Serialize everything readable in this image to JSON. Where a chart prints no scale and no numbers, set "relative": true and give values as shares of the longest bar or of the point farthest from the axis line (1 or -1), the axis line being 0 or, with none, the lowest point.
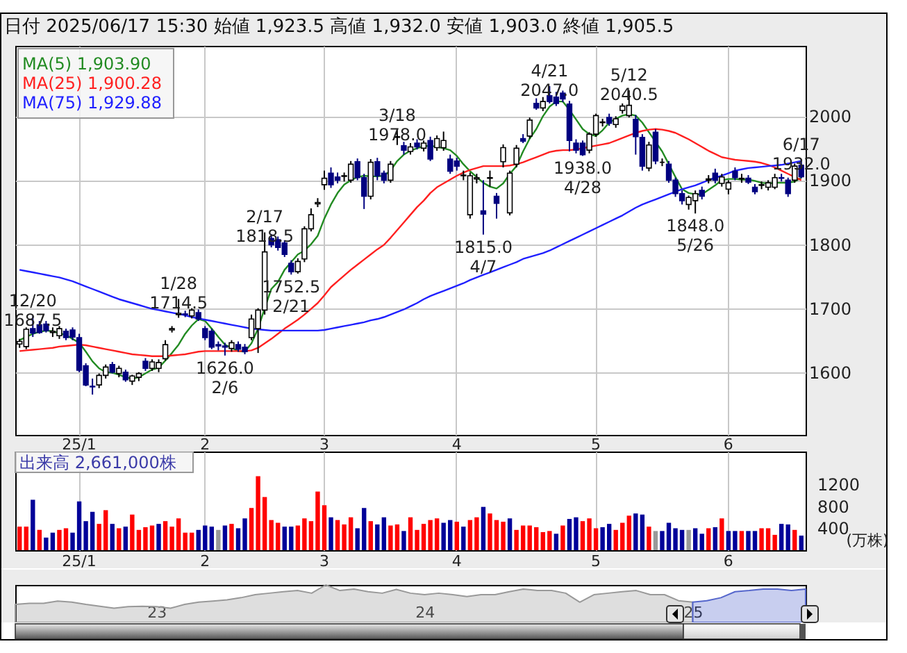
{
  "chart_data": [
    {
      "type": "candlestick",
      "title": "日付 2025/06/17 15:30 始値 1,923.5 高値 1,932.0 安値 1,903.0 終値 1,905.5",
      "categories": [
        null,
        null,
        null,
        null,
        null,
        null,
        null,
        null,
        null,
        "25/1",
        null,
        null,
        null,
        null,
        null,
        null,
        null,
        null,
        null,
        null,
        null,
        null,
        null,
        null,
        null,
        null,
        null,
        null,
        "2",
        null,
        null,
        null,
        null,
        null,
        null,
        null,
        null,
        null,
        null,
        null,
        null,
        null,
        null,
        null,
        null,
        null,
        "3",
        null,
        null,
        null,
        null,
        null,
        null,
        null,
        null,
        null,
        null,
        null,
        null,
        null,
        null,
        null,
        null,
        null,
        null,
        null,
        "4",
        null,
        null,
        null,
        null,
        null,
        null,
        null,
        null,
        null,
        null,
        null,
        null,
        null,
        null,
        null,
        null,
        null,
        null,
        null,
        null,
        "5",
        null,
        null,
        null,
        null,
        null,
        null,
        null,
        null,
        null,
        null,
        null,
        null,
        null,
        null,
        null,
        null,
        null,
        null,
        null,
        "6",
        null,
        null,
        null,
        null,
        null,
        null,
        null,
        null,
        null,
        null,
        null
      ],
      "ohlc": [
        [
          1644,
          1652,
          1638,
          1648
        ],
        [
          1640,
          1670,
          1636,
          1667
        ],
        [
          1668,
          1687.5,
          1655,
          1661
        ],
        [
          1674,
          1680,
          1660,
          1662
        ],
        [
          1675,
          1680,
          1662,
          1665
        ],
        [
          1662,
          1670,
          1655,
          1664
        ],
        [
          1657,
          1672,
          1652,
          1668
        ],
        [
          1664,
          1668,
          1650,
          1654
        ],
        [
          1666,
          1670,
          1650,
          1655
        ],
        [
          1654,
          1660,
          1600,
          1603
        ],
        [
          1610,
          1614,
          1578,
          1580
        ],
        [
          1578,
          1590,
          1565,
          1577
        ],
        [
          1580,
          1598,
          1575,
          1595
        ],
        [
          1595,
          1612,
          1590,
          1608
        ],
        [
          1612,
          1616,
          1598,
          1600
        ],
        [
          1598,
          1610,
          1592,
          1606
        ],
        [
          1600,
          1604,
          1585,
          1588
        ],
        [
          1586,
          1596,
          1580,
          1594
        ],
        [
          1592,
          1600,
          1586,
          1598
        ],
        [
          1617,
          1622,
          1602,
          1606
        ],
        [
          1606,
          1620,
          1602,
          1616
        ],
        [
          1606,
          1620,
          1600,
          1615
        ],
        [
          1621,
          1650,
          1618,
          1643
        ],
        [
          1666,
          1672,
          1662,
          1668
        ],
        [
          1690,
          1714.5,
          1685,
          1692
        ],
        [
          1691,
          1696,
          1686,
          1690
        ],
        [
          1688,
          1700,
          1684,
          1697
        ],
        [
          1693,
          1698,
          1680,
          1683
        ],
        [
          1668,
          1672,
          1650,
          1654
        ],
        [
          1664,
          1668,
          1636,
          1639
        ],
        [
          1643,
          1648,
          1634,
          1641
        ],
        [
          1641,
          1646,
          1626,
          1639
        ],
        [
          1637,
          1650,
          1632,
          1646
        ],
        [
          1643,
          1648,
          1632,
          1636
        ],
        [
          1639,
          1644,
          1628,
          1632
        ],
        [
          1654,
          1690,
          1650,
          1683
        ],
        [
          1668,
          1700,
          1630,
          1697
        ],
        [
          1697,
          1818.5,
          1690,
          1788
        ],
        [
          1809,
          1816,
          1795,
          1799
        ],
        [
          1807,
          1812,
          1790,
          1795
        ],
        [
          1802,
          1806,
          1780,
          1784
        ],
        [
          1770,
          1775,
          1752.5,
          1757
        ],
        [
          1757,
          1778,
          1754,
          1773
        ],
        [
          1777,
          1828,
          1772,
          1824
        ],
        [
          1824,
          1856,
          1820,
          1846
        ],
        [
          1863,
          1872,
          1858,
          1865
        ],
        [
          1893,
          1915,
          1885,
          1903
        ],
        [
          1911,
          1920,
          1888,
          1893
        ],
        [
          1905,
          1912,
          1895,
          1900
        ],
        [
          1906,
          1912,
          1898,
          1907
        ],
        [
          1900,
          1930,
          1896,
          1925
        ],
        [
          1929,
          1934,
          1900,
          1904
        ],
        [
          1904,
          1910,
          1855,
          1875
        ],
        [
          1875,
          1933,
          1870,
          1928
        ],
        [
          1929,
          1935,
          1900,
          1907
        ],
        [
          1911,
          1915,
          1895,
          1900
        ],
        [
          1900,
          1930,
          1896,
          1925
        ],
        [
          1967,
          1978,
          1955,
          1968
        ],
        [
          1954,
          1960,
          1940,
          1947
        ],
        [
          1945,
          1958,
          1940,
          1952
        ],
        [
          1958,
          1964,
          1948,
          1952
        ],
        [
          1950,
          1962,
          1945,
          1958
        ],
        [
          1962,
          1968,
          1930,
          1933
        ],
        [
          1951,
          1970,
          1946,
          1965
        ],
        [
          1951,
          1976,
          1946,
          1962
        ],
        [
          1933,
          1940,
          1910,
          1914
        ],
        [
          1930,
          1935,
          1915,
          1922
        ],
        [
          1907,
          1915,
          1900,
          1908
        ],
        [
          1846,
          1912,
          1840,
          1907
        ],
        [
          1902,
          1910,
          1895,
          1904
        ],
        [
          1852,
          1900,
          1815,
          1847
        ],
        [
          1903,
          1915,
          1890,
          1904
        ],
        [
          1875,
          1880,
          1840,
          1864
        ],
        [
          1929,
          1956,
          1920,
          1951
        ],
        [
          1849,
          1915,
          1845,
          1911
        ],
        [
          1925,
          1955,
          1920,
          1950
        ],
        [
          1965,
          1972,
          1958,
          1961
        ],
        [
          1969,
          1998,
          1965,
          1994
        ],
        [
          2020,
          2028,
          2010,
          2013
        ],
        [
          2013,
          2030,
          2008,
          2023
        ],
        [
          2032,
          2047,
          2020,
          2023
        ],
        [
          2030,
          2038,
          2016,
          2020
        ],
        [
          2036,
          2040,
          2022,
          2027
        ],
        [
          2019,
          2024,
          1945,
          1962
        ],
        [
          1958,
          1964,
          1942,
          1947
        ],
        [
          1958,
          1962,
          1938,
          1940
        ],
        [
          1947,
          1975,
          1942,
          1972
        ],
        [
          1972,
          2004,
          1968,
          2001
        ],
        [
          1990,
          1996,
          1984,
          1991
        ],
        [
          1998,
          2004,
          1985,
          1989
        ],
        [
          1987,
          2000,
          1982,
          1996
        ],
        [
          2009,
          2020,
          2004,
          2016
        ],
        [
          2001,
          2040.5,
          1998,
          2017
        ],
        [
          1995,
          2002,
          1940,
          1968
        ],
        [
          1967,
          1972,
          1915,
          1922
        ],
        [
          1919,
          1960,
          1914,
          1955
        ],
        [
          1975,
          1980,
          1925,
          1930
        ],
        [
          1928,
          1934,
          1922,
          1928
        ],
        [
          1925,
          1930,
          1896,
          1900
        ],
        [
          1900,
          1904,
          1874,
          1879
        ],
        [
          1879,
          1884,
          1862,
          1868
        ],
        [
          1862,
          1876,
          1854,
          1873
        ],
        [
          1868,
          1884,
          1848,
          1879
        ],
        [
          1884,
          1890,
          1870,
          1875
        ],
        [
          1900,
          1908,
          1895,
          1902
        ],
        [
          1911,
          1918,
          1895,
          1900
        ],
        [
          1895,
          1910,
          1890,
          1905
        ],
        [
          1886,
          1900,
          1878,
          1896
        ],
        [
          1914,
          1920,
          1900,
          1904
        ],
        [
          1902,
          1910,
          1896,
          1903
        ],
        [
          1903,
          1908,
          1894,
          1897
        ],
        [
          1889,
          1894,
          1878,
          1882
        ],
        [
          1892,
          1898,
          1886,
          1893
        ],
        [
          1889,
          1900,
          1884,
          1896
        ],
        [
          1889,
          1910,
          1886,
          1904
        ],
        [
          1904,
          1910,
          1898,
          1903
        ],
        [
          1900,
          1904,
          1874,
          1879
        ],
        [
          1900,
          1926,
          1896,
          1922
        ],
        [
          1923.5,
          1932,
          1903,
          1905.5
        ]
      ],
      "series": [
        {
          "name": "MA(5) 1,903.90",
          "type": "line",
          "color": "#228b22",
          "values": [
            1650,
            1655,
            1660,
            1663,
            1665,
            1664,
            1661,
            1658,
            1652,
            1646,
            1632,
            1617,
            1606,
            1600,
            1599,
            1596,
            1592,
            1590,
            1592,
            1598,
            1604,
            1607,
            1618,
            1630,
            1643,
            1660,
            1673,
            1683,
            1680,
            1668,
            1655,
            1643,
            1638,
            1633,
            1632,
            1645,
            1668,
            1700,
            1730,
            1741,
            1760,
            1772,
            1784,
            1790,
            1800,
            1813,
            1840,
            1862,
            1880,
            1893,
            1900,
            1905,
            1907,
            1906,
            1906,
            1907,
            1915,
            1930,
            1940,
            1946,
            1950,
            1953,
            1954,
            1952,
            1950,
            1947,
            1938,
            1925,
            1914,
            1905,
            1896,
            1890,
            1887,
            1895,
            1910,
            1922,
            1945,
            1965,
            1980,
            2000,
            2015,
            2023,
            2023,
            2010,
            1995,
            1980,
            1972,
            1969,
            1978,
            1990,
            1996,
            2001,
            2003,
            2001,
            1990,
            1975,
            1960,
            1945,
            1925,
            1905,
            1886,
            1880,
            1878,
            1878,
            1885,
            1892,
            1900,
            1902,
            1902,
            1901,
            1901,
            1899,
            1896,
            1895,
            1896,
            1896,
            1896,
            1898,
            1904
          ]
        },
        {
          "name": "MA(25) 1,900.28",
          "type": "line",
          "color": "#ff2020",
          "values": [
            1633,
            1634,
            1635,
            1636,
            1637,
            1638,
            1640,
            1641,
            1642,
            1643,
            1642,
            1640,
            1638,
            1636,
            1634,
            1632,
            1630,
            1628,
            1627,
            1626,
            1625,
            1625,
            1625,
            1626,
            1627,
            1628,
            1630,
            1632,
            1633,
            1633,
            1633,
            1633,
            1633,
            1633,
            1633,
            1634,
            1638,
            1645,
            1652,
            1660,
            1668,
            1675,
            1682,
            1690,
            1699,
            1708,
            1720,
            1733,
            1742,
            1751,
            1760,
            1768,
            1776,
            1784,
            1792,
            1799,
            1810,
            1822,
            1834,
            1846,
            1858,
            1868,
            1880,
            1889,
            1895,
            1901,
            1907,
            1912,
            1916,
            1919,
            1922,
            1922,
            1922,
            1922,
            1923,
            1925,
            1928,
            1932,
            1936,
            1940,
            1944,
            1946,
            1947,
            1947,
            1948,
            1950,
            1952,
            1954,
            1956,
            1958,
            1962,
            1966,
            1970,
            1974,
            1977,
            1979,
            1980,
            1979,
            1977,
            1974,
            1969,
            1964,
            1958,
            1952,
            1946,
            1941,
            1936,
            1934,
            1932,
            1931,
            1930,
            1929,
            1927,
            1924,
            1920,
            1915,
            1910,
            1905,
            1900
          ]
        },
        {
          "name": "MA(75) 1,929.88",
          "type": "line",
          "color": "#2020ff",
          "values": [
            1760,
            1758,
            1756,
            1754,
            1752,
            1750,
            1748,
            1745,
            1742,
            1738,
            1734,
            1730,
            1726,
            1722,
            1718,
            1714,
            1711,
            1708,
            1705,
            1702,
            1699,
            1697,
            1695,
            1693,
            1691,
            1689,
            1686,
            1684,
            1682,
            1680,
            1678,
            1676,
            1674,
            1672,
            1670,
            1668,
            1667,
            1666,
            1665,
            1665,
            1665,
            1665,
            1665,
            1665,
            1665,
            1665,
            1666,
            1668,
            1670,
            1672,
            1674,
            1676,
            1678,
            1681,
            1683,
            1686,
            1690,
            1694,
            1698,
            1703,
            1708,
            1714,
            1719,
            1723,
            1727,
            1731,
            1735,
            1739,
            1744,
            1748,
            1752,
            1756,
            1760,
            1764,
            1768,
            1772,
            1777,
            1780,
            1783,
            1786,
            1790,
            1795,
            1800,
            1805,
            1810,
            1815,
            1820,
            1825,
            1830,
            1835,
            1840,
            1845,
            1851,
            1857,
            1862,
            1866,
            1870,
            1874,
            1878,
            1882,
            1886,
            1889,
            1892,
            1896,
            1900,
            1904,
            1907,
            1911,
            1915,
            1917,
            1919,
            1920,
            1921,
            1922,
            1923,
            1924,
            1926,
            1928,
            1930
          ]
        }
      ],
      "annotations": [
        {
          "text": "12/20\n1687.5",
          "y": 1687.5
        },
        {
          "text": "1/28\n1714.5",
          "y": 1714.5
        },
        {
          "text": "1626.0\n2/6",
          "y": 1626
        },
        {
          "text": "2/17\n1818.5",
          "y": 1818.5
        },
        {
          "text": "1752.5\n2/21",
          "y": 1752.5
        },
        {
          "text": "3/18\n1978.0",
          "y": 1978
        },
        {
          "text": "1815.0\n4/7",
          "y": 1815
        },
        {
          "text": "4/21\n2047.0",
          "y": 2047
        },
        {
          "text": "1938.0\n4/28",
          "y": 1938
        },
        {
          "text": "5/12\n2040.5",
          "y": 2040.5
        },
        {
          "text": "1848.0\n5/26",
          "y": 1848
        },
        {
          "text": "6/17\n1932.0",
          "y": 1932
        }
      ],
      "ylim": [
        1502,
        2110
      ],
      "yticks": [
        1600,
        1700,
        1800,
        1900,
        2000
      ],
      "grid": true,
      "legend": "top left"
    },
    {
      "type": "bar",
      "title": "出来高 2,661,000株",
      "ylabel": "(万株)",
      "categories": [
        null,
        null,
        null,
        null,
        null,
        null,
        null,
        null,
        null,
        "25/1",
        null,
        null,
        null,
        null,
        null,
        null,
        null,
        null,
        null,
        null,
        null,
        null,
        null,
        null,
        null,
        null,
        null,
        null,
        "2",
        null,
        null,
        null,
        null,
        null,
        null,
        null,
        null,
        null,
        null,
        null,
        null,
        null,
        null,
        null,
        null,
        null,
        "3",
        null,
        null,
        null,
        null,
        null,
        null,
        null,
        null,
        null,
        null,
        null,
        null,
        null,
        null,
        null,
        null,
        null,
        null,
        null,
        "4",
        null,
        null,
        null,
        null,
        null,
        null,
        null,
        null,
        null,
        null,
        null,
        null,
        null,
        null,
        null,
        null,
        null,
        null,
        null,
        null,
        "5",
        null,
        null,
        null,
        null,
        null,
        null,
        null,
        null,
        null,
        null,
        null,
        null,
        null,
        null,
        null,
        null,
        null,
        null,
        null,
        "6",
        null,
        null,
        null,
        null,
        null,
        null,
        null,
        null,
        null,
        null,
        null
      ],
      "values": [
        430,
        430,
        920,
        370,
        230,
        320,
        370,
        400,
        320,
        890,
        530,
        700,
        480,
        730,
        480,
        400,
        430,
        650,
        370,
        420,
        450,
        480,
        530,
        430,
        580,
        320,
        320,
        370,
        450,
        430,
        370,
        450,
        480,
        400,
        580,
        770,
        1350,
        970,
        550,
        500,
        430,
        430,
        450,
        580,
        530,
        1070,
        820,
        600,
        550,
        470,
        600,
        400,
        770,
        530,
        470,
        600,
        450,
        470,
        350,
        600,
        370,
        480,
        550,
        580,
        500,
        550,
        520,
        430,
        550,
        600,
        790,
        670,
        550,
        520,
        580,
        370,
        450,
        450,
        420,
        330,
        350,
        300,
        450,
        570,
        600,
        530,
        580,
        400,
        420,
        480,
        370,
        500,
        630,
        670,
        650,
        430,
        350,
        350,
        500,
        400,
        370,
        370,
        400,
        300,
        400,
        420,
        580,
        350,
        350,
        350,
        350,
        350,
        400,
        400,
        280,
        480,
        470,
        370,
        266
      ],
      "colors": [
        "#ff0000",
        "#ff0000",
        "#000099",
        "#ff0000",
        "#000099",
        "#000099",
        "#ff0000",
        "#ff0000",
        "#000099",
        "#000099",
        "#000099",
        "#000099",
        "#ff0000",
        "#ff0000",
        "#000099",
        "#ff0000",
        "#000099",
        "#ff0000",
        "#ff0000",
        "#ff0000",
        "#ff0000",
        "#000099",
        "#ff0000",
        "#ff0000",
        "#ff0000",
        "#ff0000",
        "#ff0000",
        "#000099",
        "#000099",
        "#000099",
        "#999999",
        "#000099",
        "#ff0000",
        "#000099",
        "#000099",
        "#ff0000",
        "#ff0000",
        "#ff0000",
        "#ff0000",
        "#ff0000",
        "#000099",
        "#000099",
        "#ff0000",
        "#ff0000",
        "#ff0000",
        "#ff0000",
        "#ff0000",
        "#000099",
        "#ff0000",
        "#ff0000",
        "#ff0000",
        "#000099",
        "#000099",
        "#ff0000",
        "#000099",
        "#000099",
        "#ff0000",
        "#ff0000",
        "#000099",
        "#ff0000",
        "#ff0000",
        "#ff0000",
        "#ff0000",
        "#ff0000",
        "#000099",
        "#000099",
        "#ff0000",
        "#000099",
        "#ff0000",
        "#ff0000",
        "#000099",
        "#ff0000",
        "#ff0000",
        "#ff0000",
        "#000099",
        "#ff0000",
        "#ff0000",
        "#ff0000",
        "#ff0000",
        "#ff0000",
        "#ff0000",
        "#000099",
        "#ff0000",
        "#000099",
        "#000099",
        "#ff0000",
        "#ff0000",
        "#ff0000",
        "#000099",
        "#000099",
        "#ff0000",
        "#ff0000",
        "#ff0000",
        "#000099",
        "#000099",
        "#ff0000",
        "#999999",
        "#000099",
        "#000099",
        "#000099",
        "#000099",
        "#999999",
        "#000099",
        "#000099",
        "#ff0000",
        "#000099",
        "#ff0000",
        "#000099",
        "#000099",
        "#ff0000",
        "#000099",
        "#000099",
        "#ff0000",
        "#ff0000",
        "#ff0000",
        "#000099",
        "#000099",
        "#ff0000",
        "#000099"
      ],
      "ylim": [
        0,
        1800
      ],
      "yticks": [
        400,
        800,
        1200
      ],
      "grid": "x"
    },
    {
      "type": "area",
      "relative": true,
      "categories": [
        null,
        null,
        null,
        null,
        null,
        null,
        null,
        null,
        null,
        null,
        "23",
        null,
        null,
        null,
        null,
        null,
        null,
        null,
        null,
        null,
        null,
        null,
        null,
        null,
        null,
        null,
        null,
        null,
        null,
        "24",
        null,
        null,
        null,
        null,
        null,
        null,
        null,
        null,
        null,
        null,
        null,
        null,
        null,
        null,
        null,
        null,
        null,
        null,
        "25",
        null,
        null,
        null,
        null,
        null,
        null,
        null,
        null
      ],
      "series": [
        {
          "color": "#999999",
          "values": [
            0.48,
            0.51,
            0.51,
            0.57,
            0.54,
            0.48,
            0.43,
            0.38,
            0.42,
            0.43,
            0.42,
            0.38,
            0.48,
            0.54,
            0.57,
            0.6,
            0.66,
            0.74,
            0.78,
            0.82,
            0.85,
            0.78,
            1,
            0.85,
            0.89,
            0.82,
            0.78,
            0.88,
            0.78,
            0.74,
            0.78,
            0.74,
            0.69,
            0.74,
            0.74,
            0.82,
            0.89,
            0.85,
            0.85,
            0.78,
            0.54,
            0.74,
            0.78,
            0.82,
            0.85,
            0.74,
            0.74,
            0.58,
            0.54,
            null,
            null,
            null,
            null,
            null,
            null,
            null,
            null
          ]
        },
        {
          "color": "#5566cc",
          "values": [
            null,
            null,
            null,
            null,
            null,
            null,
            null,
            null,
            null,
            null,
            null,
            null,
            null,
            null,
            null,
            null,
            null,
            null,
            null,
            null,
            null,
            null,
            null,
            null,
            null,
            null,
            null,
            null,
            null,
            null,
            null,
            null,
            null,
            null,
            null,
            null,
            null,
            null,
            null,
            null,
            null,
            null,
            null,
            null,
            null,
            null,
            null,
            null,
            0.54,
            0.58,
            0.66,
            0.82,
            0.85,
            0.89,
            0.89,
            0.85,
            0.89
          ]
        }
      ]
    }
  ]
}
